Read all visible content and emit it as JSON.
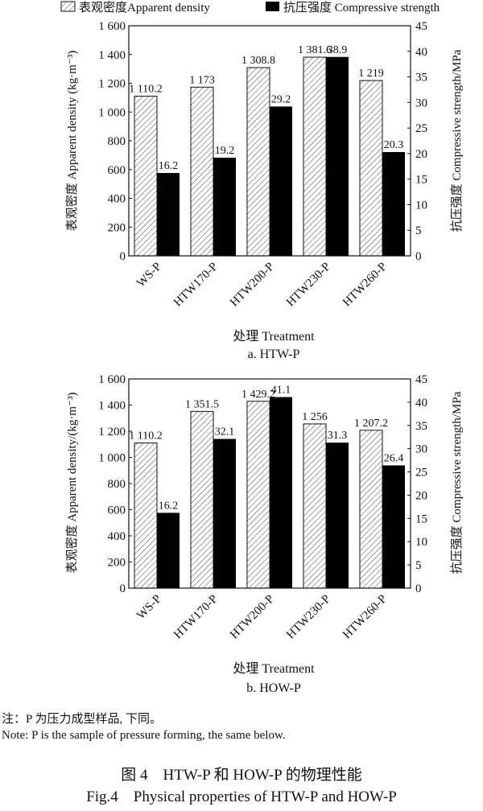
{
  "legend": {
    "density_label": "表观密度Apparent density",
    "strength_label": "抗压强度 Compressive strength"
  },
  "notes": {
    "zh": "注：P 为压力成型样品, 下同。",
    "en": "Note: P is the sample of pressure forming, the same below."
  },
  "figure_caption": {
    "zh": "图 4　HTW-P 和 HOW-P 的物理性能",
    "en": "Fig.4　Physical properties of HTW-P and HOW-P"
  },
  "colors": {
    "density_fill": "hatched-gray",
    "strength_fill": "#000000"
  },
  "chart_data": [
    {
      "type": "bar",
      "subtitle": "a. HTW-P",
      "xlabel": "处理 Treatment",
      "ylabel_left": "表观密度 Apparent density (kg·m⁻³)",
      "ylabel_right": "抗压强度 Compressive strength/MPa",
      "categories": [
        "WS-P",
        "HTW170-P",
        "HTW200-P",
        "HTW230-P",
        "HTW260-P"
      ],
      "ylim_left": [
        0,
        1600
      ],
      "ylim_right": [
        0,
        45
      ],
      "yticks_left": [
        "0",
        "200",
        "400",
        "600",
        "800",
        "1 000",
        "1 200",
        "1 400",
        "1 600"
      ],
      "yticks_right": [
        "0",
        "5",
        "10",
        "15",
        "20",
        "25",
        "30",
        "35",
        "40",
        "45"
      ],
      "series": [
        {
          "name": "表观密度Apparent density",
          "axis": "left",
          "values": [
            1110.2,
            1173,
            1308.8,
            1381.6,
            1219
          ],
          "labels": [
            "1 110.2",
            "1 173",
            "1 308.8",
            "1 381.6",
            "1 219"
          ]
        },
        {
          "name": "抗压强度 Compressive strength",
          "axis": "right",
          "values": [
            16.2,
            19.2,
            29.2,
            38.9,
            20.3
          ],
          "labels": [
            "16.2",
            "19.2",
            "29.2",
            "38.9",
            "20.3"
          ]
        }
      ]
    },
    {
      "type": "bar",
      "subtitle": "b. HOW-P",
      "xlabel": "处理 Treatment",
      "ylabel_left": "表观密度 Apparent density/(kg·m⁻³)",
      "ylabel_right": "抗压强度 Compressive strength/MPa",
      "categories": [
        "WS-P",
        "HTW170-P",
        "HTW200-P",
        "HTW230-P",
        "HTW260-P"
      ],
      "ylim_left": [
        0,
        1600
      ],
      "ylim_right": [
        0,
        45
      ],
      "yticks_left": [
        "0",
        "200",
        "400",
        "600",
        "800",
        "1 000",
        "1 200",
        "1 400",
        "1 600"
      ],
      "yticks_right": [
        "0",
        "5",
        "10",
        "15",
        "20",
        "25",
        "30",
        "35",
        "40",
        "45"
      ],
      "series": [
        {
          "name": "表观密度Apparent density",
          "axis": "left",
          "values": [
            1110.2,
            1351.5,
            1429.2,
            1256,
            1207.2
          ],
          "labels": [
            "1 110.2",
            "1 351.5",
            "1 429.2",
            "1 256",
            "1 207.2"
          ]
        },
        {
          "name": "抗压强度 Compressive strength",
          "axis": "right",
          "values": [
            16.2,
            32.1,
            41.1,
            31.3,
            26.4
          ],
          "labels": [
            "16.2",
            "32.1",
            "41.1",
            "31.3",
            "26.4"
          ]
        }
      ]
    }
  ]
}
